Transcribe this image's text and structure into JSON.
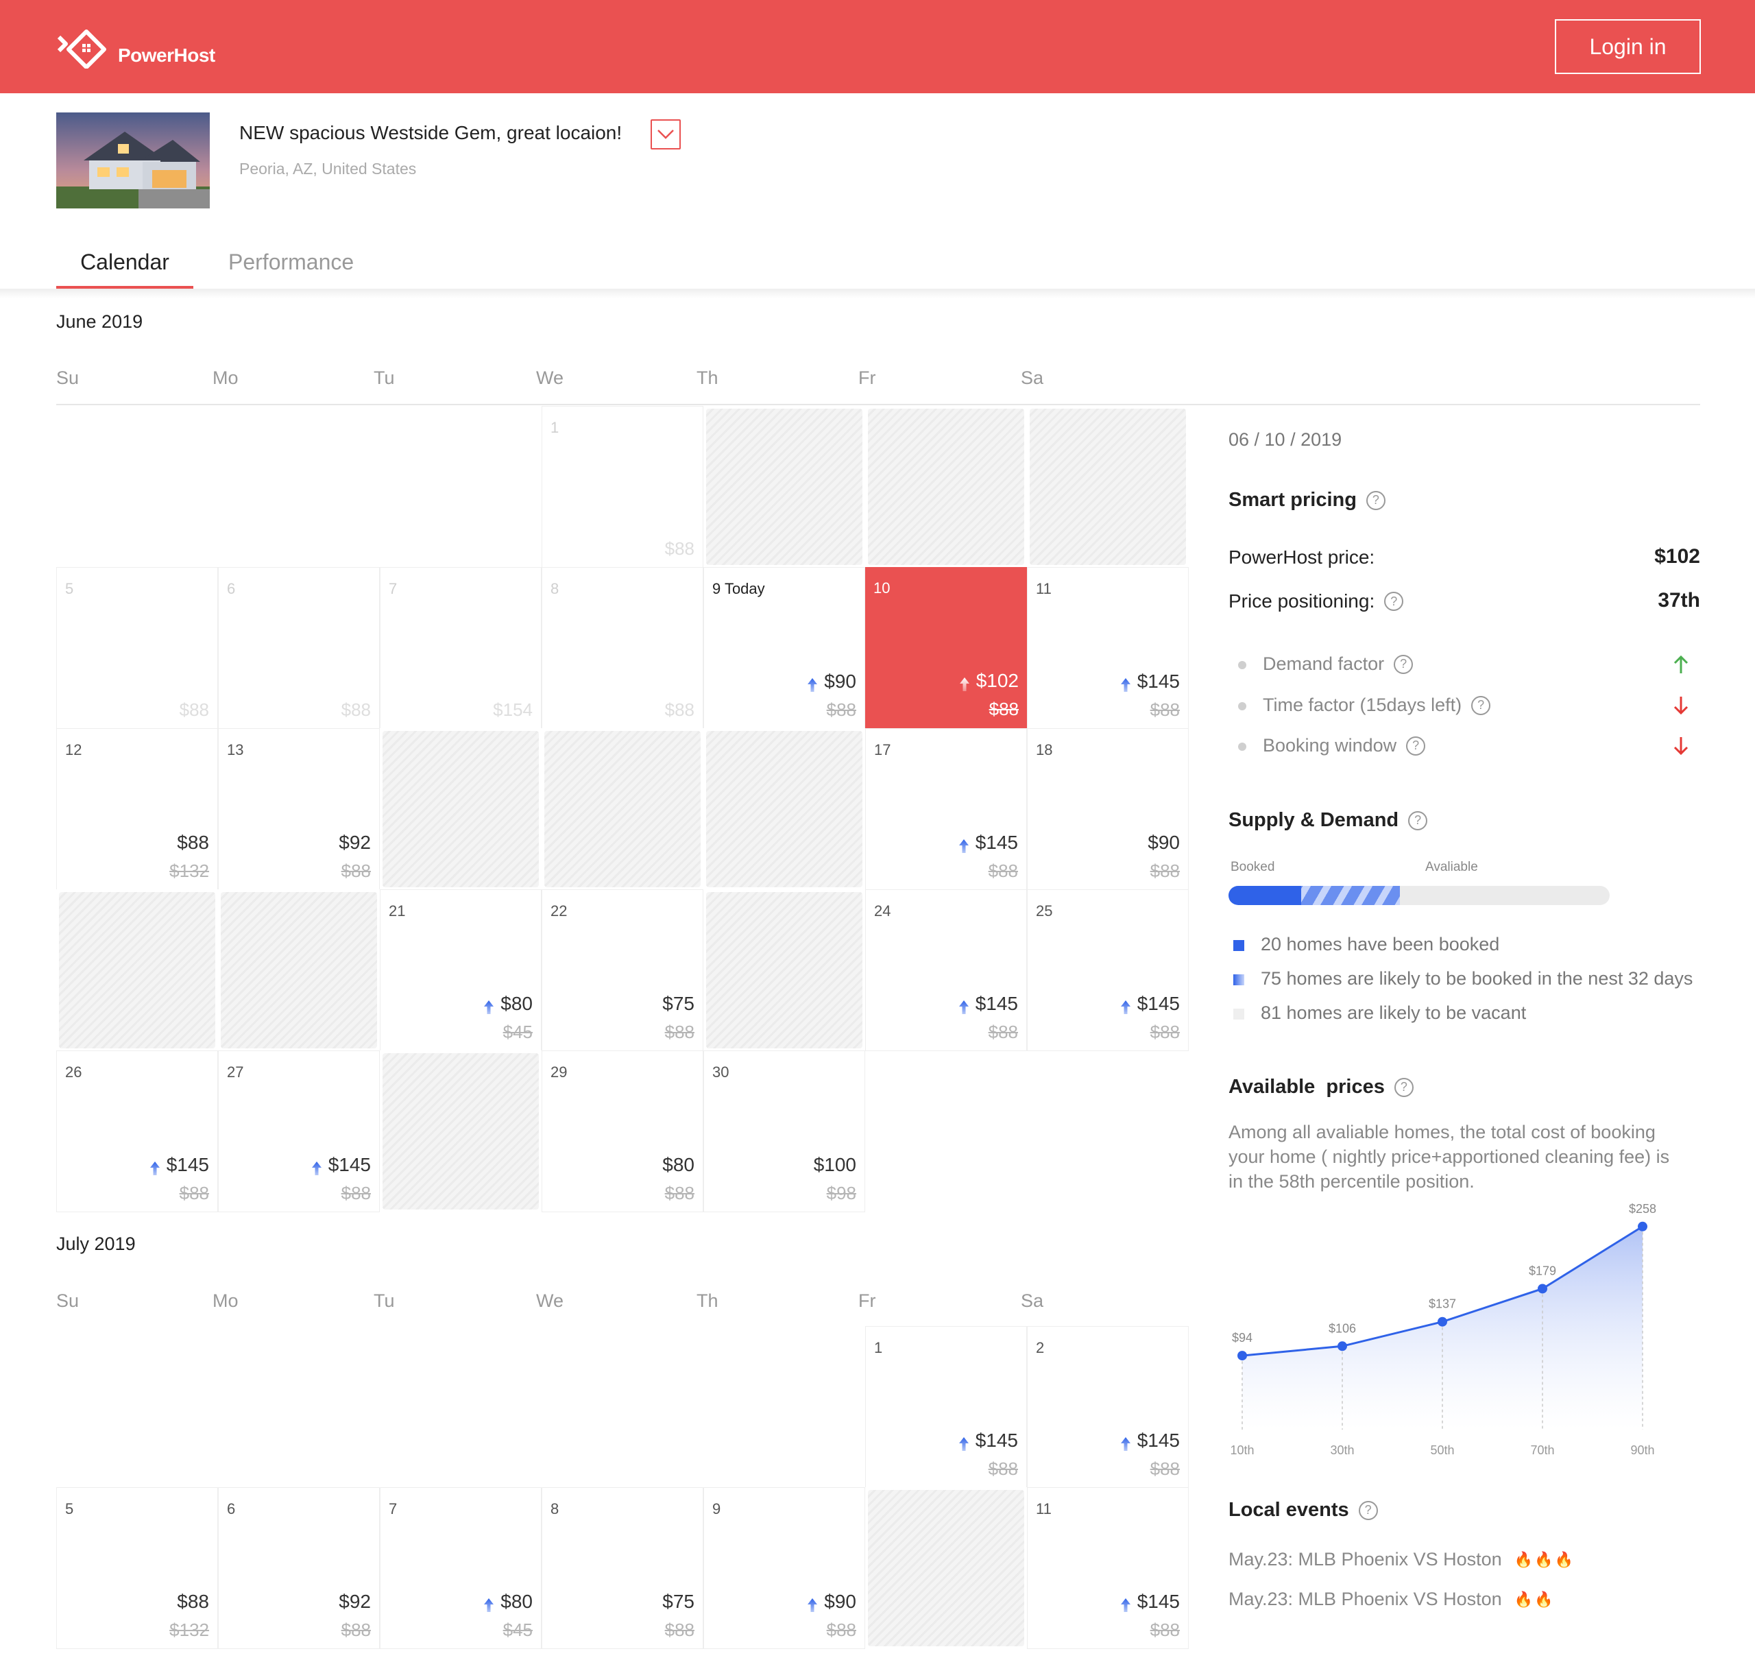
{
  "brand": {
    "name": "PowerHost"
  },
  "header": {
    "login_label": "Login in"
  },
  "property": {
    "title": "NEW spacious Westside Gem, great locaion!",
    "location": "Peoria, AZ, United States"
  },
  "tabs": [
    {
      "label": "Calendar",
      "active": true
    },
    {
      "label": "Performance",
      "active": false
    }
  ],
  "weekdays": [
    "Su",
    "Mo",
    "Tu",
    "We",
    "Th",
    "Fr",
    "Sa"
  ],
  "calendars": [
    {
      "month": "June 2019",
      "weeks": [
        [
          null,
          null,
          null,
          {
            "day": "1",
            "old": "$88",
            "past": true
          },
          {
            "blocked": true
          },
          {
            "blocked": true
          },
          {
            "blocked": true
          }
        ],
        [
          {
            "day": "5",
            "old": "$88",
            "past": true
          },
          {
            "day": "6",
            "old": "$88",
            "past": true
          },
          {
            "day": "7",
            "old": "$154",
            "past": true
          },
          {
            "day": "8",
            "old": "$88",
            "past": true
          },
          {
            "day": "9",
            "today_label": "Today",
            "price": "$90",
            "old": "$88",
            "up": true
          },
          {
            "day": "10",
            "price": "$102",
            "old": "$88",
            "up": true,
            "selected": true
          },
          {
            "day": "11",
            "price": "$145",
            "old": "$88",
            "up": true
          }
        ],
        [
          {
            "day": "12",
            "price": "$88",
            "old": "$132"
          },
          {
            "day": "13",
            "price": "$92",
            "old": "$88"
          },
          {
            "blocked": true
          },
          {
            "blocked": true
          },
          {
            "blocked": true
          },
          {
            "day": "17",
            "price": "$145",
            "old": "$88",
            "up": true
          },
          {
            "day": "18",
            "price": "$90",
            "old": "$88"
          }
        ],
        [
          {
            "blocked": true
          },
          {
            "blocked": true
          },
          {
            "day": "21",
            "price": "$80",
            "old": "$45",
            "up": true
          },
          {
            "day": "22",
            "price": "$75",
            "old": "$88"
          },
          {
            "blocked": true
          },
          {
            "day": "24",
            "price": "$145",
            "old": "$88",
            "up": true
          },
          {
            "day": "25",
            "price": "$145",
            "old": "$88",
            "up": true
          }
        ],
        [
          {
            "day": "26",
            "price": "$145",
            "old": "$88",
            "up": true
          },
          {
            "day": "27",
            "price": "$145",
            "old": "$88",
            "up": true
          },
          {
            "blocked": true
          },
          {
            "day": "29",
            "price": "$80",
            "old": "$88"
          },
          {
            "day": "30",
            "price": "$100",
            "old": "$98"
          },
          null,
          null
        ]
      ]
    },
    {
      "month": "July 2019",
      "weeks": [
        [
          null,
          null,
          null,
          null,
          null,
          {
            "day": "1",
            "price": "$145",
            "old": "$88",
            "up": true
          },
          {
            "day": "2",
            "price": "$145",
            "old": "$88",
            "up": true
          }
        ],
        [
          {
            "day": "5",
            "price": "$88",
            "old": "$132"
          },
          {
            "day": "6",
            "price": "$92",
            "old": "$88"
          },
          {
            "day": "7",
            "price": "$80",
            "old": "$45",
            "up": true
          },
          {
            "day": "8",
            "price": "$75",
            "old": "$88"
          },
          {
            "day": "9",
            "price": "$90",
            "old": "$88",
            "up": true
          },
          {
            "blocked": true
          },
          {
            "day": "11",
            "price": "$145",
            "old": "$88",
            "up": true
          }
        ]
      ]
    }
  ],
  "sidebar": {
    "date": "06 / 10 / 2019",
    "smart_pricing": {
      "title": "Smart pricing",
      "powerhost_label": "PowerHost price:",
      "powerhost_value": "$102",
      "positioning_label": "Price positioning:",
      "positioning_value": "37th",
      "factors": [
        {
          "label": "Demand factor",
          "trend": "up"
        },
        {
          "label": "Time factor (15days left)",
          "trend": "down"
        },
        {
          "label": "Booking window",
          "trend": "down"
        }
      ]
    },
    "supply_demand": {
      "title": "Supply & Demand",
      "booked_label": "Booked",
      "available_label": "Avaliable",
      "booked_fraction": 0.19,
      "likely_fraction": 0.45,
      "legend": [
        {
          "text": "20 homes have been booked"
        },
        {
          "text": "75 homes are likely to be booked in the nest 32 days"
        },
        {
          "text": "81 homes are likely to be vacant"
        }
      ]
    },
    "available_prices": {
      "title": "Available  prices",
      "description": "Among all avaliable homes, the total cost of booking your home ( nightly price+apportioned cleaning fee) is in the 58th percentile position."
    },
    "local_events": {
      "title": "Local events",
      "items": [
        {
          "text": "May.23: MLB Phoenix VS Hoston",
          "flames": "🔥🔥🔥"
        },
        {
          "text": "May.23: MLB Phoenix VS Hoston",
          "flames": "🔥🔥"
        }
      ]
    }
  },
  "colors": {
    "brand": "#ea5151",
    "accent_blue": "#2f62e8",
    "up_green": "#4caf50",
    "down_red": "#e53935"
  },
  "chart_data": {
    "type": "area",
    "categories": [
      "10th",
      "30th",
      "50th",
      "70th",
      "90th"
    ],
    "values": [
      94,
      106,
      137,
      179,
      258
    ],
    "labels": [
      "$94",
      "$106",
      "$137",
      "$179",
      "$258"
    ],
    "title": "",
    "xlabel": "",
    "ylabel": "",
    "ylim": [
      0,
      270
    ]
  }
}
